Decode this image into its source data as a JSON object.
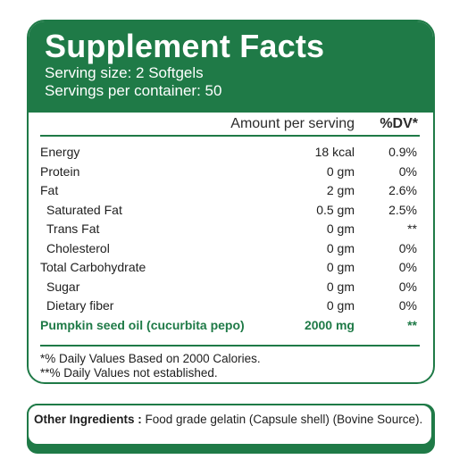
{
  "header": {
    "title": "Supplement Facts",
    "serving_size": "Serving size: 2 Softgels",
    "servings_per_container": "Servings per container: 50"
  },
  "table": {
    "columns": [
      "Amount per serving",
      "%DV*"
    ],
    "rows": [
      {
        "name": "Energy",
        "amount": "18 kcal",
        "dv": "0.9%"
      },
      {
        "name": "Protein",
        "amount": "0 gm",
        "dv": "0%"
      },
      {
        "name": "Fat",
        "amount": "2 gm",
        "dv": "2.6%",
        "items": [
          {
            "name": "Saturated Fat",
            "amount": "0.5 gm",
            "dv": "2.5%"
          },
          {
            "name": "Trans Fat",
            "amount": "0 gm",
            "dv": "**"
          },
          {
            "name": "Cholesterol",
            "amount": "0 gm",
            "dv": "0%"
          }
        ]
      },
      {
        "name": "Total Carbohydrate",
        "amount": "0 gm",
        "dv": "0%",
        "items": [
          {
            "name": "Sugar",
            "amount": "0 gm",
            "dv": "0%"
          },
          {
            "name": "Dietary fiber",
            "amount": "0 gm",
            "dv": "0%"
          }
        ]
      },
      {
        "name": "Pumpkin seed oil (cucurbita pepo)",
        "amount": "2000 mg",
        "dv": "**"
      }
    ]
  },
  "footnotes": [
    "*% Daily Values Based on 2000 Calories.",
    "**% Daily Values not established."
  ],
  "other_ingredients": {
    "label": "Other Ingredients :",
    "text": "Food grade gelatin (Capsule shell) (Bovine Source)."
  }
}
